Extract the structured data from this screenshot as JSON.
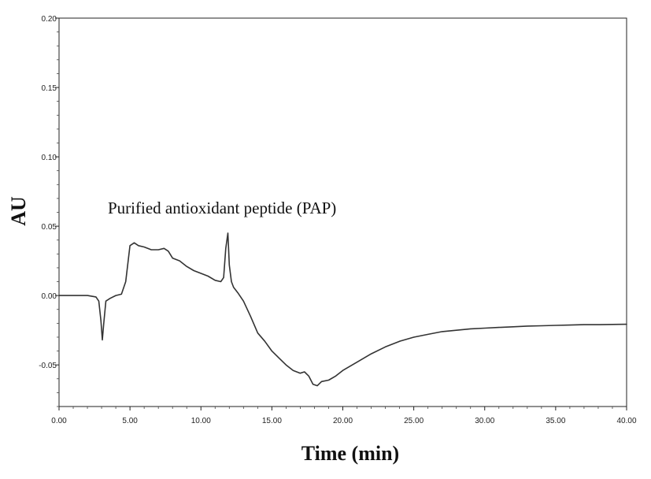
{
  "chart_data": {
    "type": "line",
    "title": "",
    "xlabel": "Time (min)",
    "ylabel": "AU",
    "xlim": [
      0,
      40
    ],
    "ylim": [
      -0.08,
      0.2
    ],
    "x_ticks": [
      "0.00",
      "5.00",
      "10.00",
      "15.00",
      "20.00",
      "25.00",
      "30.00",
      "35.00",
      "40.00"
    ],
    "y_ticks": [
      "-0.05",
      "0.00",
      "0.05",
      "0.10",
      "0.15",
      "0.20"
    ],
    "grid": false,
    "legend": "none",
    "annotation": "Purified antioxidant peptide (PAP)",
    "line_color": "#333333",
    "series": [
      {
        "x": [
          0.0,
          1.0,
          2.0,
          2.6,
          2.8,
          2.95,
          3.05,
          3.15,
          3.3,
          3.6,
          4.0,
          4.4,
          4.7,
          5.0,
          5.3,
          5.6,
          6.0,
          6.5,
          7.0,
          7.4,
          7.7,
          8.0,
          8.5,
          9.0,
          9.5,
          10.0,
          10.5,
          11.0,
          11.4,
          11.6,
          11.75,
          11.9,
          12.0,
          12.15,
          12.3,
          12.6,
          13.0,
          13.5,
          14.0,
          14.5,
          15.0,
          15.5,
          16.0,
          16.5,
          17.0,
          17.3,
          17.6,
          17.9,
          18.2,
          18.5,
          19.0,
          19.5,
          20.0,
          21.0,
          22.0,
          23.0,
          24.0,
          25.0,
          26.0,
          27.0,
          28.0,
          29.0,
          30.0,
          31.0,
          32.0,
          33.0,
          34.0,
          35.0,
          36.0,
          37.0,
          38.0,
          39.0,
          40.0
        ],
        "y": [
          0.0,
          0.0,
          0.0,
          -0.001,
          -0.004,
          -0.018,
          -0.032,
          -0.02,
          -0.004,
          -0.002,
          0.0,
          0.001,
          0.01,
          0.036,
          0.038,
          0.036,
          0.035,
          0.033,
          0.033,
          0.034,
          0.032,
          0.027,
          0.025,
          0.021,
          0.018,
          0.016,
          0.014,
          0.011,
          0.01,
          0.013,
          0.034,
          0.045,
          0.022,
          0.01,
          0.006,
          0.002,
          -0.004,
          -0.015,
          -0.027,
          -0.033,
          -0.04,
          -0.045,
          -0.05,
          -0.054,
          -0.056,
          -0.055,
          -0.058,
          -0.064,
          -0.065,
          -0.062,
          -0.061,
          -0.058,
          -0.054,
          -0.048,
          -0.042,
          -0.037,
          -0.033,
          -0.03,
          -0.028,
          -0.026,
          -0.025,
          -0.024,
          -0.0235,
          -0.023,
          -0.0225,
          -0.022,
          -0.0218,
          -0.0215,
          -0.0213,
          -0.021,
          -0.021,
          -0.0208,
          -0.0207
        ]
      }
    ]
  }
}
